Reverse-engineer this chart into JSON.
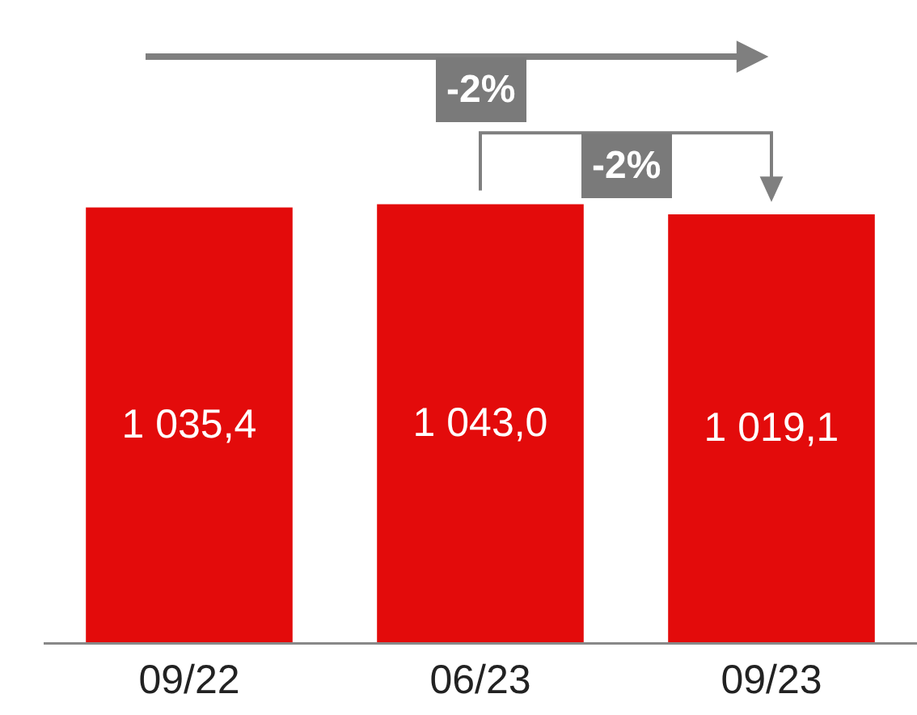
{
  "chart_data": {
    "type": "bar",
    "categories": [
      "09/22",
      "06/23",
      "09/23"
    ],
    "values": [
      1035.4,
      1043.0,
      1019.1
    ],
    "value_labels": [
      "1 035,4",
      "1 043,0",
      "1 019,1"
    ],
    "color": "#e30b0b",
    "tick_labels": "x",
    "grid": false,
    "legend": false,
    "annotations": [
      "-2%",
      "-2%"
    ]
  }
}
